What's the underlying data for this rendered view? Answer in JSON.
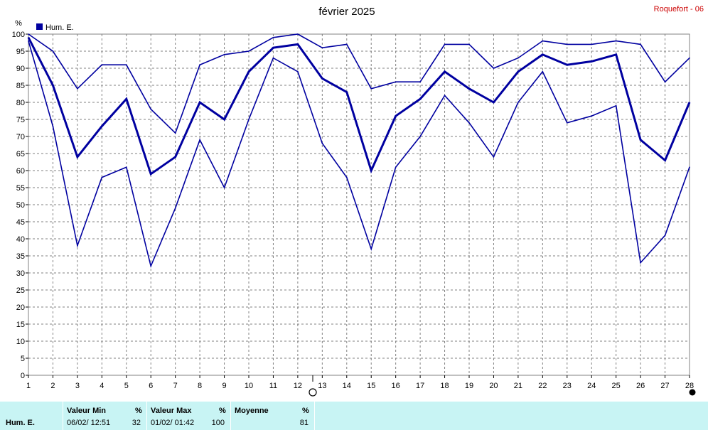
{
  "chart_data": {
    "type": "line",
    "title": "février 2025",
    "station": "Roquefort - 06",
    "ylabel": "%",
    "legend": "Hum. E.",
    "legend_color": "#0000a0",
    "line_color": "#0000a0",
    "ylim": [
      0,
      100
    ],
    "y_ticks": [
      "0",
      "5",
      "10",
      "15",
      "20",
      "25",
      "30",
      "35",
      "40",
      "45",
      "50",
      "55",
      "60",
      "65",
      "70",
      "75",
      "80",
      "85",
      "90",
      "95",
      "100"
    ],
    "x": [
      1,
      2,
      3,
      4,
      5,
      6,
      7,
      8,
      9,
      10,
      11,
      12,
      13,
      14,
      15,
      16,
      17,
      18,
      19,
      20,
      21,
      22,
      23,
      24,
      25,
      26,
      27,
      28
    ],
    "x_ticks": [
      "1",
      "2",
      "3",
      "4",
      "5",
      "6",
      "7",
      "8",
      "9",
      "10",
      "11",
      "12",
      "13",
      "14",
      "15",
      "16",
      "17",
      "18",
      "19",
      "20",
      "21",
      "22",
      "23",
      "24",
      "25",
      "26",
      "27",
      "28"
    ],
    "grid": true,
    "series": [
      {
        "role": "max",
        "values": [
          100,
          95,
          84,
          91,
          91,
          78,
          71,
          91,
          94,
          95,
          99,
          100,
          96,
          97,
          84,
          86,
          86,
          97,
          97,
          90,
          93,
          98,
          97,
          97,
          98,
          97,
          86,
          93
        ]
      },
      {
        "role": "mean",
        "values": [
          99,
          85,
          64,
          73,
          81,
          59,
          64,
          80,
          75,
          89,
          96,
          97,
          87,
          83,
          60,
          76,
          81,
          89,
          84,
          80,
          89,
          94,
          91,
          92,
          94,
          69,
          63,
          80
        ]
      },
      {
        "role": "min",
        "values": [
          98,
          73,
          38,
          58,
          61,
          32,
          49,
          69,
          55,
          75,
          93,
          89,
          68,
          58,
          37,
          61,
          70,
          82,
          74,
          64,
          80,
          89,
          74,
          76,
          79,
          33,
          41,
          61
        ]
      }
    ]
  },
  "stats": {
    "series_name": "Hum. E.",
    "min_label": "Valeur Min",
    "min_unit": "%",
    "min_date": "06/02/  12:51",
    "min_value": "32",
    "max_label": "Valeur Max",
    "max_unit": "%",
    "max_date": "01/02/  01:42",
    "max_value": "100",
    "avg_label": "Moyenne",
    "avg_unit": "%",
    "avg_value": "81",
    "background": "#c8f4f4"
  }
}
